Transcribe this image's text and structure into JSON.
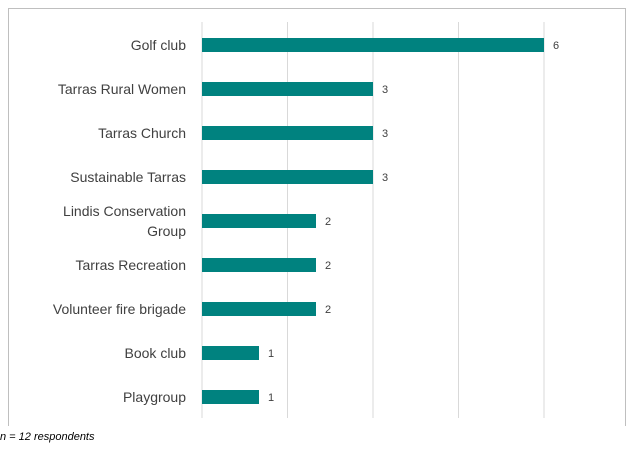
{
  "chart_data": {
    "type": "bar",
    "orientation": "horizontal",
    "categories": [
      "Golf club",
      "Tarras Rural Women",
      "Tarras Church",
      "Sustainable Tarras",
      "Lindis Conservation Group",
      "Tarras Recreation",
      "Volunteer fire brigade",
      "Book club",
      "Playgroup"
    ],
    "values": [
      6,
      3,
      3,
      3,
      2,
      2,
      2,
      1,
      1
    ],
    "xlim": [
      0,
      7
    ],
    "grid": true,
    "data_labels": true,
    "bar_color": "#00827f",
    "gridline_color": "#d9d9d9"
  },
  "footnote": "n = 12 respondents"
}
